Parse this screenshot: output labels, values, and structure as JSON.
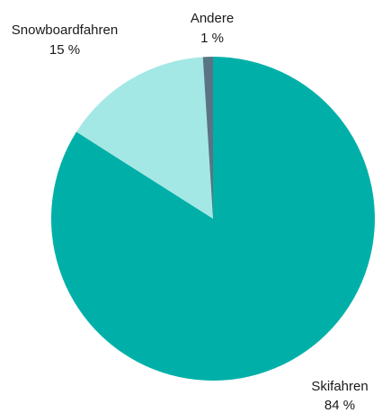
{
  "chart_data": {
    "type": "pie",
    "title": "",
    "start": "12 o'clock",
    "direction": "clockwise",
    "legend": "none",
    "slices": [
      {
        "name": "Skifahren",
        "value": 84,
        "value_label": "84 %",
        "color": "#00b0a8"
      },
      {
        "name": "Snowboardfahren",
        "value": 15,
        "value_label": "15 %",
        "color": "#a3e8e5"
      },
      {
        "name": "Andere",
        "value": 1,
        "value_label": "1 %",
        "color": "#5a7486"
      }
    ]
  }
}
